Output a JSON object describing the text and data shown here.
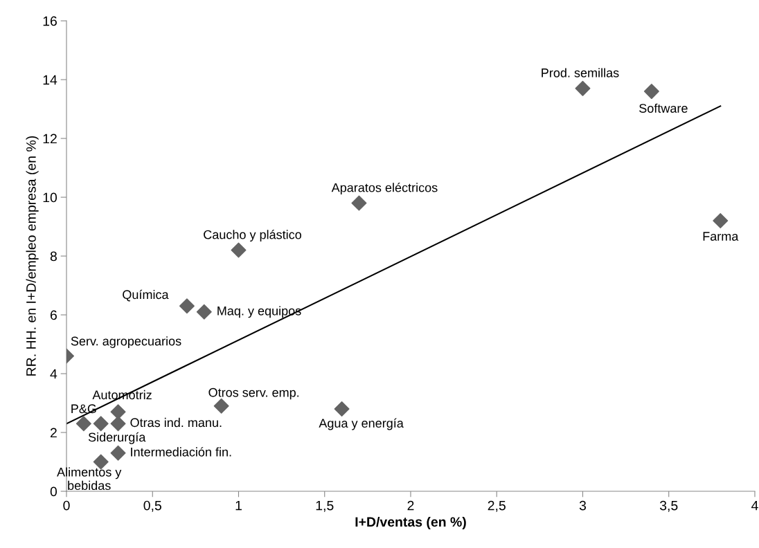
{
  "chart_data": {
    "type": "scatter",
    "xlabel": "I+D/ventas (en %)",
    "ylabel": "RR. HH. en I+D/empleo empresa (en %)",
    "xlim": [
      0,
      4
    ],
    "ylim": [
      0,
      16
    ],
    "xticks": [
      0,
      {
        "value": 0.5,
        "label": "0,5"
      },
      1,
      {
        "value": 1.5,
        "label": "1,5"
      },
      2,
      {
        "value": 2.5,
        "label": "2,5"
      },
      3,
      {
        "value": 3.5,
        "label": "3,5"
      },
      4
    ],
    "yticks": [
      0,
      2,
      4,
      6,
      8,
      10,
      12,
      14,
      16
    ],
    "grid": false,
    "legend": false,
    "marker": "diamond",
    "series": [
      {
        "color": "#636363",
        "x": [
          0,
          0.1,
          0.2,
          0.3,
          0.3,
          0.2,
          0.3,
          0.9,
          1.6,
          0.7,
          0.8,
          1.0,
          1.7,
          3.0,
          3.4,
          3.8
        ],
        "values": [
          4.6,
          2.3,
          2.3,
          2.3,
          2.7,
          1.0,
          1.3,
          2.9,
          2.8,
          6.3,
          6.1,
          8.2,
          9.8,
          13.7,
          13.6,
          9.2
        ]
      },
      {
        "type": "line",
        "color": "#000000",
        "marker": "none",
        "x": [
          0,
          3.8
        ],
        "values": [
          2.3,
          13.1
        ]
      }
    ],
    "annotations": [
      {
        "text": "Serv. agropecuarios",
        "x": 0,
        "y": 4.6
      },
      {
        "text": "P&G",
        "x": 0.1,
        "y": 2.3
      },
      {
        "text": "Siderurgía",
        "x": 0.2,
        "y": 2.3
      },
      {
        "text": "Otras ind. manu.",
        "x": 0.3,
        "y": 2.3
      },
      {
        "text": "Automotriz",
        "x": 0.3,
        "y": 2.7
      },
      {
        "text": "Alimentos y\nbebidas",
        "x": 0.2,
        "y": 1.0
      },
      {
        "text": "Intermediación fin.",
        "x": 0.3,
        "y": 1.3
      },
      {
        "text": "Otros serv. emp.",
        "x": 0.9,
        "y": 2.9
      },
      {
        "text": "Agua y energía",
        "x": 1.6,
        "y": 2.8
      },
      {
        "text": "Química",
        "x": 0.7,
        "y": 6.3
      },
      {
        "text": "Maq. y equipos",
        "x": 0.8,
        "y": 6.1
      },
      {
        "text": "Caucho y plástico",
        "x": 1.0,
        "y": 8.2
      },
      {
        "text": "Aparatos eléctricos",
        "x": 1.7,
        "y": 9.8
      },
      {
        "text": "Prod. semillas",
        "x": 3.0,
        "y": 13.7
      },
      {
        "text": "Software",
        "x": 3.4,
        "y": 13.6
      },
      {
        "text": "Farma",
        "x": 3.8,
        "y": 9.2
      }
    ]
  }
}
